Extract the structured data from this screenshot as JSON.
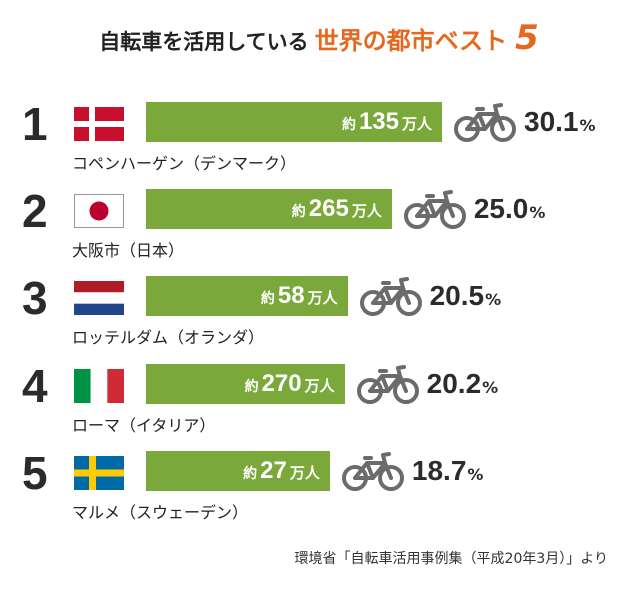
{
  "title": {
    "part1": "自転車を活用している",
    "part2": "世界の都市ベスト",
    "part3": "5"
  },
  "colors": {
    "accent": "#e8671e",
    "bar": "#7aa83a",
    "text": "#2b2b2b",
    "bike_icon": "#6b6b6b"
  },
  "bar_prefix": "約",
  "bar_unit": "万人",
  "percent_sign": "%",
  "chart_data": {
    "type": "bar",
    "title": "自転車を活用している世界の都市ベスト5",
    "categories": [
      "コペンハーゲン（デンマーク）",
      "大阪市（日本）",
      "ロッテルダム（オランダ）",
      "ローマ（イタリア）",
      "マルメ（スウェーデン）"
    ],
    "ranks": [
      "1",
      "2",
      "3",
      "4",
      "5"
    ],
    "flags": [
      "denmark-flag",
      "japan-flag",
      "netherlands-flag",
      "italy-flag",
      "sweden-flag"
    ],
    "population_labels": [
      "135",
      "265",
      "58",
      "270",
      "27"
    ],
    "values": [
      30.1,
      25.0,
      20.5,
      20.2,
      18.7
    ],
    "value_labels": [
      "30.1",
      "25.0",
      "20.5",
      "20.2",
      "18.7"
    ],
    "unit": "%"
  },
  "source": "環境省「自転車活用事例集（平成20年3月）」より"
}
